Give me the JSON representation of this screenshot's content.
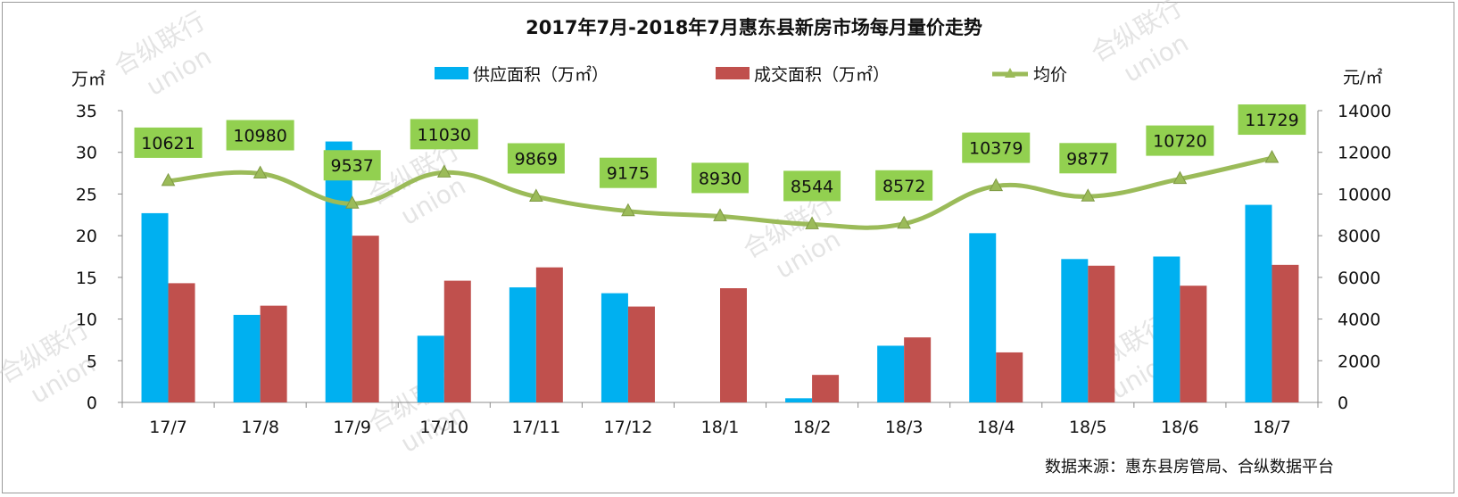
{
  "chart_data": {
    "type": "bar",
    "title": "2017年7月-2018年7月惠东县新房市场每月量价走势",
    "categories": [
      "17/7",
      "17/8",
      "17/9",
      "17/10",
      "17/11",
      "17/12",
      "18/1",
      "18/2",
      "18/3",
      "18/4",
      "18/5",
      "18/6",
      "18/7"
    ],
    "series": [
      {
        "name": "供应面积（万㎡）",
        "kind": "bar",
        "axis": "left",
        "color": "#00b0f0",
        "values": [
          22.7,
          10.5,
          31.3,
          8.0,
          13.8,
          13.1,
          0,
          0.5,
          6.8,
          20.3,
          17.2,
          17.5,
          23.7
        ]
      },
      {
        "name": "成交面积（万㎡）",
        "kind": "bar",
        "axis": "left",
        "color": "#c0504d",
        "values": [
          14.3,
          11.6,
          20.0,
          14.6,
          16.2,
          11.5,
          13.7,
          3.3,
          7.8,
          6.0,
          16.4,
          14.0,
          16.5
        ]
      },
      {
        "name": "均价",
        "kind": "line",
        "axis": "right",
        "color": "#9bbb59",
        "values": [
          10621,
          10980,
          9537,
          11030,
          9869,
          9175,
          8930,
          8544,
          8572,
          10379,
          9877,
          10720,
          11729
        ]
      }
    ],
    "ylabel_left": "万㎡",
    "ylabel_right": "元/㎡",
    "ylim_left": [
      0,
      35
    ],
    "yticks_left": [
      "0",
      "5",
      "10",
      "15",
      "20",
      "25",
      "30",
      "35"
    ],
    "ylim_right": [
      0,
      14000
    ],
    "yticks_right": [
      "0",
      "2000",
      "4000",
      "6000",
      "8000",
      "10000",
      "12000",
      "14000"
    ],
    "grid": false,
    "legend_position": "top",
    "price_label_color": "#92d050",
    "source": "数据来源：惠东县房管局、合纵数据平台",
    "watermark": [
      "合纵联行",
      "union"
    ]
  }
}
